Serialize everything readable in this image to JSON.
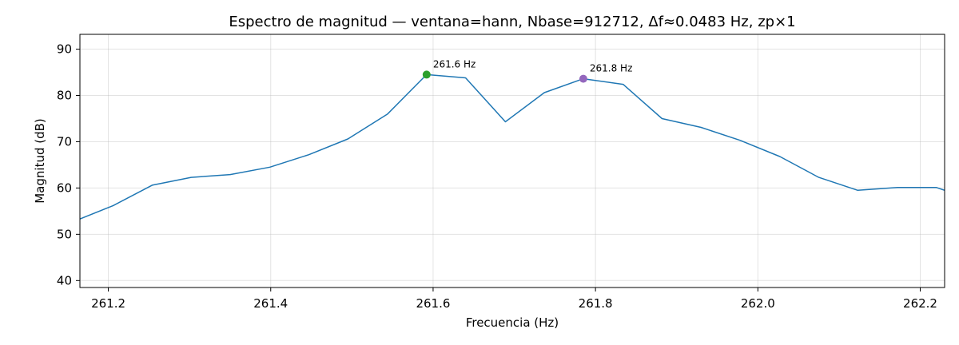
{
  "chart_data": {
    "type": "line",
    "title": "Espectro de magnitud — ventana=hann, Nbase=912712, Δf≈0.0483 Hz, zp×1",
    "xlabel": "Frecuencia (Hz)",
    "ylabel": "Magnitud (dB)",
    "xlim": [
      261.165,
      262.23
    ],
    "ylim": [
      38.5,
      93.2
    ],
    "xticks": [
      261.2,
      261.4,
      261.6,
      261.8,
      262.0,
      262.2
    ],
    "xtick_labels": [
      "261.2",
      "261.4",
      "261.6",
      "261.8",
      "262.0",
      "262.2"
    ],
    "yticks": [
      40,
      50,
      60,
      70,
      80,
      90
    ],
    "ytick_labels": [
      "40",
      "50",
      "60",
      "70",
      "80",
      "90"
    ],
    "grid": true,
    "series": [
      {
        "color": "#1f77b4",
        "x": [
          261.165,
          261.206,
          261.254,
          261.302,
          261.35,
          261.399,
          261.447,
          261.495,
          261.544,
          261.592,
          261.64,
          261.689,
          261.737,
          261.785,
          261.834,
          261.882,
          261.93,
          261.978,
          262.027,
          262.075,
          262.123,
          262.172,
          262.22,
          262.23
        ],
        "y": [
          53.3,
          56.2,
          60.6,
          62.3,
          62.9,
          64.5,
          67.2,
          70.6,
          76.0,
          84.5,
          83.8,
          74.3,
          80.6,
          83.6,
          82.4,
          75.0,
          73.1,
          70.3,
          66.8,
          62.3,
          59.5,
          60.1,
          60.1,
          59.5
        ]
      }
    ],
    "markers": [
      {
        "x": 261.592,
        "y": 84.5,
        "color": "#2ca02c",
        "label": "261.6 Hz"
      },
      {
        "x": 261.785,
        "y": 83.6,
        "color": "#9467bd",
        "label": "261.8 Hz"
      }
    ]
  }
}
